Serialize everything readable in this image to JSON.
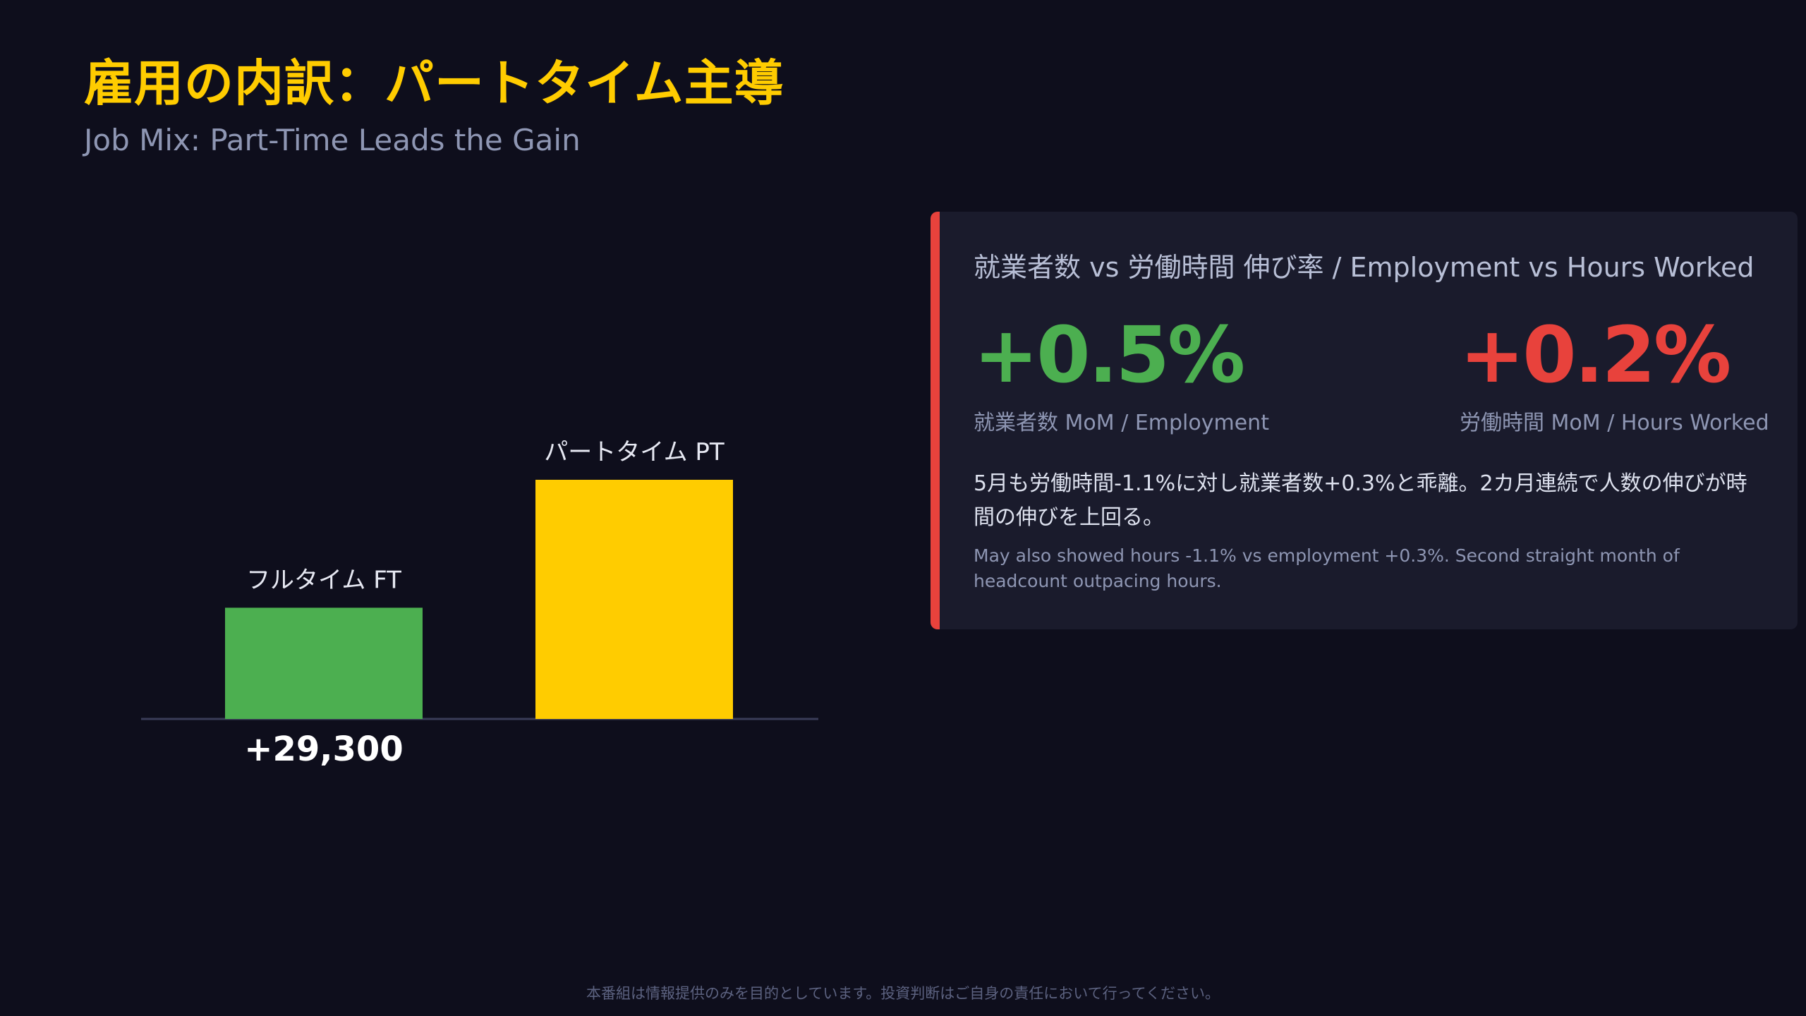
{
  "header": {
    "title": "雇用の内訳：パートタイム主導",
    "subtitle": "Job Mix: Part-Time Leads the Gain"
  },
  "chart_data": {
    "type": "bar",
    "categories": [
      "フルタイム FT",
      "パートタイム PT"
    ],
    "values": [
      29300,
      63000
    ],
    "data_labels": [
      "+29,300",
      ""
    ],
    "colors": [
      "#4caf50",
      "#ffcc00"
    ],
    "title": "",
    "xlabel": "",
    "ylabel": "",
    "ylim": [
      0,
      63000
    ],
    "grid": false
  },
  "card": {
    "heading": "就業者数 vs 労働時間 伸び率 / Employment vs Hours Worked",
    "accent_color": "#e8423c",
    "metrics": [
      {
        "value": "+0.5%",
        "label": "就業者数 MoM / Employment",
        "color": "#4caf50"
      },
      {
        "value": "+0.2%",
        "label": "労働時間 MoM / Hours Worked",
        "color": "#e8423c"
      }
    ],
    "note_jp": "5月も労働時間-1.1%に対し就業者数+0.3%と乖離。2カ月連続で人数の伸びが時間の伸びを上回る。",
    "note_en": "May also showed hours -1.1% vs employment +0.3%. Second straight month of headcount outpacing hours."
  },
  "footer": {
    "disclaimer": "本番組は情報提供のみを目的としています。投資判断はご自身の責任において行ってください。"
  }
}
